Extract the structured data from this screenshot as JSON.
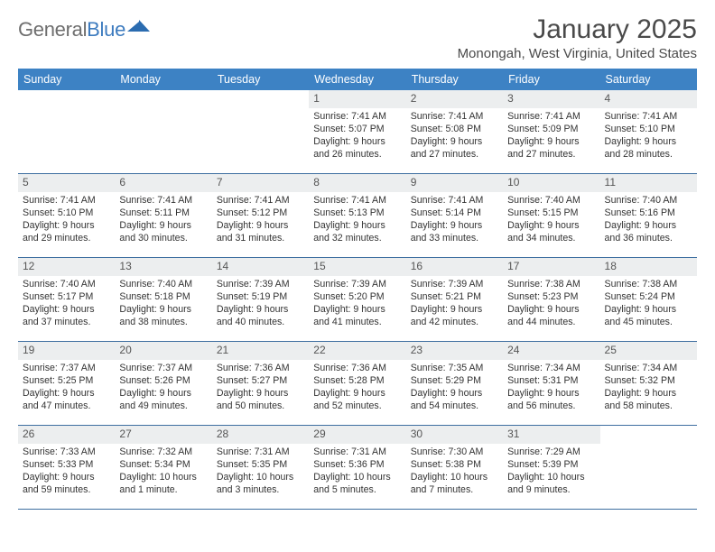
{
  "brand": {
    "part1": "General",
    "part2": "Blue"
  },
  "title": "January 2025",
  "location": "Monongah, West Virginia, United States",
  "colors": {
    "header_bg": "#3d82c4",
    "row_border": "#3d6ea0",
    "daynum_bg": "#eceeef",
    "text": "#333333",
    "brand_gray": "#6e6e6e",
    "brand_blue": "#3d7bbf"
  },
  "dow": [
    "Sunday",
    "Monday",
    "Tuesday",
    "Wednesday",
    "Thursday",
    "Friday",
    "Saturday"
  ],
  "weeks": [
    [
      null,
      null,
      null,
      {
        "n": "1",
        "sr": "7:41 AM",
        "ss": "5:07 PM",
        "dl": "9 hours and 26 minutes."
      },
      {
        "n": "2",
        "sr": "7:41 AM",
        "ss": "5:08 PM",
        "dl": "9 hours and 27 minutes."
      },
      {
        "n": "3",
        "sr": "7:41 AM",
        "ss": "5:09 PM",
        "dl": "9 hours and 27 minutes."
      },
      {
        "n": "4",
        "sr": "7:41 AM",
        "ss": "5:10 PM",
        "dl": "9 hours and 28 minutes."
      }
    ],
    [
      {
        "n": "5",
        "sr": "7:41 AM",
        "ss": "5:10 PM",
        "dl": "9 hours and 29 minutes."
      },
      {
        "n": "6",
        "sr": "7:41 AM",
        "ss": "5:11 PM",
        "dl": "9 hours and 30 minutes."
      },
      {
        "n": "7",
        "sr": "7:41 AM",
        "ss": "5:12 PM",
        "dl": "9 hours and 31 minutes."
      },
      {
        "n": "8",
        "sr": "7:41 AM",
        "ss": "5:13 PM",
        "dl": "9 hours and 32 minutes."
      },
      {
        "n": "9",
        "sr": "7:41 AM",
        "ss": "5:14 PM",
        "dl": "9 hours and 33 minutes."
      },
      {
        "n": "10",
        "sr": "7:40 AM",
        "ss": "5:15 PM",
        "dl": "9 hours and 34 minutes."
      },
      {
        "n": "11",
        "sr": "7:40 AM",
        "ss": "5:16 PM",
        "dl": "9 hours and 36 minutes."
      }
    ],
    [
      {
        "n": "12",
        "sr": "7:40 AM",
        "ss": "5:17 PM",
        "dl": "9 hours and 37 minutes."
      },
      {
        "n": "13",
        "sr": "7:40 AM",
        "ss": "5:18 PM",
        "dl": "9 hours and 38 minutes."
      },
      {
        "n": "14",
        "sr": "7:39 AM",
        "ss": "5:19 PM",
        "dl": "9 hours and 40 minutes."
      },
      {
        "n": "15",
        "sr": "7:39 AM",
        "ss": "5:20 PM",
        "dl": "9 hours and 41 minutes."
      },
      {
        "n": "16",
        "sr": "7:39 AM",
        "ss": "5:21 PM",
        "dl": "9 hours and 42 minutes."
      },
      {
        "n": "17",
        "sr": "7:38 AM",
        "ss": "5:23 PM",
        "dl": "9 hours and 44 minutes."
      },
      {
        "n": "18",
        "sr": "7:38 AM",
        "ss": "5:24 PM",
        "dl": "9 hours and 45 minutes."
      }
    ],
    [
      {
        "n": "19",
        "sr": "7:37 AM",
        "ss": "5:25 PM",
        "dl": "9 hours and 47 minutes."
      },
      {
        "n": "20",
        "sr": "7:37 AM",
        "ss": "5:26 PM",
        "dl": "9 hours and 49 minutes."
      },
      {
        "n": "21",
        "sr": "7:36 AM",
        "ss": "5:27 PM",
        "dl": "9 hours and 50 minutes."
      },
      {
        "n": "22",
        "sr": "7:36 AM",
        "ss": "5:28 PM",
        "dl": "9 hours and 52 minutes."
      },
      {
        "n": "23",
        "sr": "7:35 AM",
        "ss": "5:29 PM",
        "dl": "9 hours and 54 minutes."
      },
      {
        "n": "24",
        "sr": "7:34 AM",
        "ss": "5:31 PM",
        "dl": "9 hours and 56 minutes."
      },
      {
        "n": "25",
        "sr": "7:34 AM",
        "ss": "5:32 PM",
        "dl": "9 hours and 58 minutes."
      }
    ],
    [
      {
        "n": "26",
        "sr": "7:33 AM",
        "ss": "5:33 PM",
        "dl": "9 hours and 59 minutes."
      },
      {
        "n": "27",
        "sr": "7:32 AM",
        "ss": "5:34 PM",
        "dl": "10 hours and 1 minute."
      },
      {
        "n": "28",
        "sr": "7:31 AM",
        "ss": "5:35 PM",
        "dl": "10 hours and 3 minutes."
      },
      {
        "n": "29",
        "sr": "7:31 AM",
        "ss": "5:36 PM",
        "dl": "10 hours and 5 minutes."
      },
      {
        "n": "30",
        "sr": "7:30 AM",
        "ss": "5:38 PM",
        "dl": "10 hours and 7 minutes."
      },
      {
        "n": "31",
        "sr": "7:29 AM",
        "ss": "5:39 PM",
        "dl": "10 hours and 9 minutes."
      },
      null
    ]
  ],
  "labels": {
    "sunrise": "Sunrise:",
    "sunset": "Sunset:",
    "daylight": "Daylight:"
  }
}
